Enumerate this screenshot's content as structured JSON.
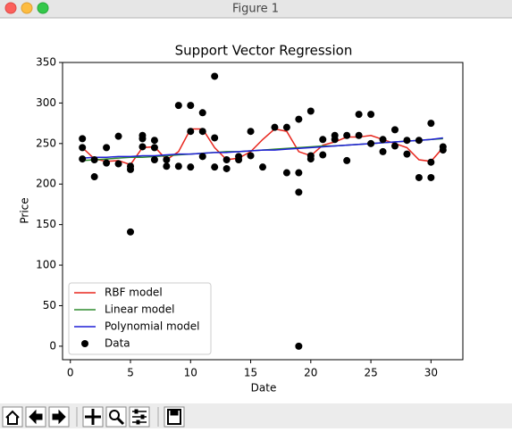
{
  "window_title": "Figure 1",
  "chart_data": {
    "type": "line",
    "title": "Support Vector Regression",
    "x_label": "Date",
    "y_label": "Price",
    "xlim": [
      -0.65,
      32.65
    ],
    "xticks": [
      0,
      5,
      10,
      15,
      20,
      25,
      30
    ],
    "ylim": [
      -16.65,
      350
    ],
    "yticks": [
      0,
      50,
      100,
      150,
      200,
      250,
      300,
      350
    ],
    "legend": "lower left",
    "series": [
      {
        "name": "RBF model",
        "type": "line",
        "color": "#e8261d",
        "x": [
          1,
          2,
          3,
          4,
          5,
          6,
          7,
          8,
          9,
          10,
          11,
          12,
          13,
          14,
          15,
          16,
          17,
          18,
          19,
          20,
          21,
          22,
          23,
          24,
          25,
          26,
          27,
          28,
          29,
          30,
          31
        ],
        "values": [
          245,
          231,
          228,
          229,
          224,
          245,
          246,
          230,
          240,
          268,
          268,
          245,
          230,
          232,
          240,
          255,
          268,
          265,
          240,
          235,
          248,
          252,
          258,
          258,
          260,
          255,
          250,
          245,
          230,
          228,
          245
        ]
      },
      {
        "name": "Linear model",
        "type": "line",
        "color": "#2e8b2e",
        "x": [
          1,
          2,
          3,
          4,
          5,
          6,
          7,
          8,
          9,
          10,
          11,
          12,
          13,
          14,
          15,
          16,
          17,
          18,
          19,
          20,
          21,
          22,
          23,
          24,
          25,
          26,
          27,
          28,
          29,
          30,
          31
        ],
        "values": [
          229,
          230,
          231,
          232,
          233,
          233,
          234,
          235,
          236,
          237,
          238,
          239,
          240,
          240,
          241,
          242,
          243,
          244,
          245,
          246,
          247,
          247,
          248,
          249,
          250,
          251,
          252,
          253,
          254,
          255,
          256
        ]
      },
      {
        "name": "Polynomial model",
        "type": "line",
        "color": "#1f1fd6",
        "x": [
          1,
          2,
          3,
          4,
          5,
          6,
          7,
          8,
          9,
          10,
          11,
          12,
          13,
          14,
          15,
          16,
          17,
          18,
          19,
          20,
          21,
          22,
          23,
          24,
          25,
          26,
          27,
          28,
          29,
          30,
          31
        ],
        "values": [
          232,
          233,
          233,
          234,
          234,
          235,
          235,
          236,
          237,
          237,
          238,
          239,
          239,
          240,
          241,
          242,
          242,
          243,
          244,
          245,
          246,
          247,
          248,
          249,
          250,
          251,
          252,
          253,
          254,
          255,
          257
        ]
      },
      {
        "name": "Data",
        "type": "scatter",
        "color": "#000000",
        "x": [
          1,
          1,
          1,
          2,
          2,
          3,
          3,
          4,
          4,
          5,
          5,
          5,
          6,
          6,
          6,
          7,
          7,
          7,
          8,
          8,
          9,
          9,
          10,
          10,
          10,
          11,
          11,
          11,
          12,
          12,
          12,
          13,
          13,
          14,
          14,
          15,
          15,
          16,
          17,
          18,
          18,
          19,
          19,
          19,
          19,
          20,
          20,
          20,
          21,
          21,
          22,
          22,
          23,
          23,
          24,
          24,
          25,
          25,
          26,
          26,
          27,
          27,
          28,
          28,
          29,
          29,
          30,
          30,
          30,
          31,
          31
        ],
        "values": [
          256,
          245,
          231,
          230,
          209,
          245,
          226,
          259,
          225,
          222,
          218,
          141,
          260,
          256,
          246,
          254,
          245,
          230,
          230,
          222,
          297,
          222,
          297,
          265,
          221,
          288,
          265,
          234,
          333,
          257,
          221,
          230,
          219,
          234,
          230,
          265,
          235,
          221,
          270,
          270,
          214,
          280,
          214,
          190,
          0,
          290,
          235,
          231,
          255,
          236,
          260,
          255,
          260,
          229,
          286,
          260,
          286,
          250,
          255,
          240,
          267,
          247,
          254,
          237,
          254,
          208,
          275,
          227,
          208,
          246,
          242
        ]
      }
    ]
  }
}
